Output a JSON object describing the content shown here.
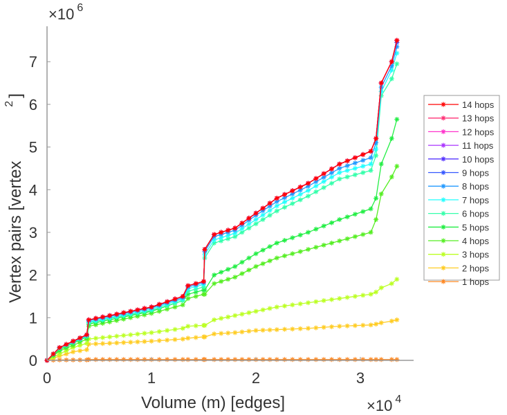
{
  "chart_data": {
    "type": "line",
    "title": "",
    "xlabel": "Volume (m) [edges]",
    "ylabel": "Vertex pairs [vertex",
    "ylabel_sup": "2",
    "ylabel_end": "]",
    "x_multiplier": "×10",
    "x_multiplier_exp": "4",
    "y_multiplier": "×10",
    "y_multiplier_exp": "6",
    "xlim": [
      0,
      3.51
    ],
    "ylim": [
      0,
      7.83
    ],
    "xticks": [
      "0",
      "1",
      "2",
      "3"
    ],
    "yticks": [
      "0",
      "1",
      "2",
      "3",
      "4",
      "5",
      "6",
      "7"
    ],
    "legend_position": "outside-right",
    "x": [
      0,
      0.12,
      0.25,
      0.38,
      0.4,
      0.6,
      1.0,
      1.3,
      1.35,
      1.5,
      1.51,
      1.6,
      1.8,
      2.0,
      2.2,
      2.5,
      2.8,
      3.1,
      3.15,
      3.2,
      3.3,
      3.35
    ],
    "series": [
      {
        "name": "14 hops",
        "color": "#ff0000",
        "values": [
          0,
          0.3,
          0.45,
          0.6,
          0.95,
          1.05,
          1.25,
          1.5,
          1.75,
          1.85,
          2.6,
          2.95,
          3.1,
          3.45,
          3.8,
          4.15,
          4.6,
          4.9,
          5.2,
          6.5,
          7.0,
          7.5
        ]
      },
      {
        "name": "13 hops",
        "color": "#ff3377",
        "values": [
          0,
          0.3,
          0.45,
          0.6,
          0.95,
          1.05,
          1.25,
          1.5,
          1.75,
          1.85,
          2.6,
          2.95,
          3.1,
          3.45,
          3.8,
          4.15,
          4.6,
          4.9,
          5.2,
          6.5,
          7.0,
          7.5
        ]
      },
      {
        "name": "12 hops",
        "color": "#ff33cc",
        "values": [
          0,
          0.3,
          0.45,
          0.6,
          0.95,
          1.05,
          1.25,
          1.5,
          1.75,
          1.85,
          2.6,
          2.95,
          3.1,
          3.45,
          3.8,
          4.15,
          4.6,
          4.9,
          5.2,
          6.5,
          7.0,
          7.5
        ]
      },
      {
        "name": "11 hops",
        "color": "#aa33ff",
        "values": [
          0,
          0.3,
          0.45,
          0.6,
          0.95,
          1.05,
          1.25,
          1.5,
          1.75,
          1.85,
          2.6,
          2.95,
          3.1,
          3.45,
          3.8,
          4.15,
          4.6,
          4.9,
          5.2,
          6.5,
          7.0,
          7.5
        ]
      },
      {
        "name": "10 hops",
        "color": "#5533ff",
        "values": [
          0,
          0.3,
          0.45,
          0.6,
          0.95,
          1.05,
          1.25,
          1.5,
          1.75,
          1.85,
          2.6,
          2.95,
          3.1,
          3.45,
          3.8,
          4.15,
          4.6,
          4.9,
          5.2,
          6.5,
          7.0,
          7.5
        ]
      },
      {
        "name": "9 hops",
        "color": "#3355ff",
        "values": [
          0,
          0.3,
          0.45,
          0.6,
          0.95,
          1.05,
          1.25,
          1.5,
          1.75,
          1.85,
          2.6,
          2.95,
          3.1,
          3.45,
          3.8,
          4.15,
          4.6,
          4.9,
          5.2,
          6.5,
          7.0,
          7.45
        ]
      },
      {
        "name": "8 hops",
        "color": "#2299ff",
        "values": [
          0,
          0.3,
          0.44,
          0.59,
          0.93,
          1.03,
          1.23,
          1.47,
          1.72,
          1.82,
          2.55,
          2.9,
          3.05,
          3.4,
          3.72,
          4.08,
          4.5,
          4.75,
          5.1,
          6.4,
          6.9,
          7.35
        ]
      },
      {
        "name": "7 hops",
        "color": "#22ffff",
        "values": [
          0,
          0.29,
          0.43,
          0.58,
          0.9,
          1.0,
          1.2,
          1.44,
          1.68,
          1.78,
          2.48,
          2.82,
          2.98,
          3.3,
          3.62,
          3.98,
          4.4,
          4.6,
          4.95,
          6.3,
          6.8,
          7.2
        ]
      },
      {
        "name": "6 hops",
        "color": "#33ffaa",
        "values": [
          0,
          0.28,
          0.42,
          0.56,
          0.88,
          0.98,
          1.17,
          1.4,
          1.62,
          1.72,
          2.4,
          2.75,
          2.9,
          3.2,
          3.5,
          3.85,
          4.25,
          4.45,
          4.8,
          6.2,
          6.6,
          6.95
        ]
      },
      {
        "name": "5 hops",
        "color": "#22ee44",
        "values": [
          0,
          0.25,
          0.4,
          0.55,
          0.85,
          0.95,
          1.15,
          1.4,
          1.55,
          1.65,
          1.65,
          2.0,
          2.2,
          2.5,
          2.75,
          3.0,
          3.3,
          3.55,
          3.8,
          4.6,
          5.2,
          5.65
        ]
      },
      {
        "name": "4 hops",
        "color": "#55ee22",
        "values": [
          0,
          0.22,
          0.35,
          0.5,
          0.8,
          0.9,
          1.1,
          1.3,
          1.45,
          1.55,
          1.55,
          1.8,
          1.95,
          2.2,
          2.4,
          2.6,
          2.8,
          3.0,
          3.3,
          3.9,
          4.3,
          4.55
        ]
      },
      {
        "name": "3 hops",
        "color": "#bbff22",
        "values": [
          0,
          0.15,
          0.3,
          0.4,
          0.5,
          0.55,
          0.65,
          0.75,
          0.8,
          0.82,
          0.82,
          0.95,
          1.05,
          1.15,
          1.25,
          1.35,
          1.45,
          1.55,
          1.6,
          1.7,
          1.8,
          1.9
        ]
      },
      {
        "name": "2 hops",
        "color": "#ffcc22",
        "values": [
          0,
          0.1,
          0.2,
          0.25,
          0.38,
          0.4,
          0.45,
          0.5,
          0.52,
          0.55,
          0.55,
          0.62,
          0.65,
          0.7,
          0.72,
          0.75,
          0.8,
          0.83,
          0.85,
          0.88,
          0.92,
          0.95
        ]
      },
      {
        "name": "1 hops",
        "color": "#ff8822",
        "values": [
          0,
          0.01,
          0.01,
          0.01,
          0.02,
          0.02,
          0.02,
          0.02,
          0.02,
          0.02,
          0.02,
          0.02,
          0.02,
          0.02,
          0.02,
          0.02,
          0.02,
          0.02,
          0.02,
          0.02,
          0.02,
          0.02
        ]
      }
    ]
  }
}
